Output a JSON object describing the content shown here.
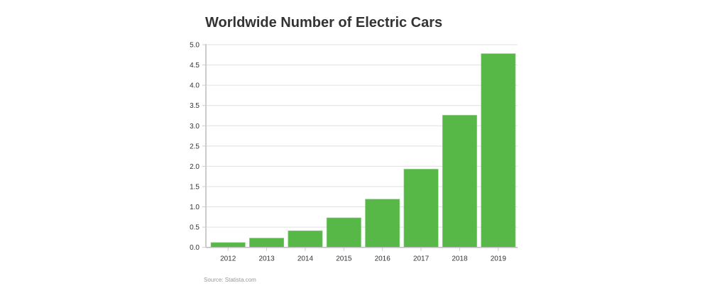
{
  "chart_data": {
    "type": "bar",
    "title": "Worldwide Number of Electric Cars",
    "xlabel": "",
    "ylabel": "",
    "categories": [
      "2012",
      "2013",
      "2014",
      "2015",
      "2016",
      "2017",
      "2018",
      "2019"
    ],
    "values": [
      0.12,
      0.23,
      0.41,
      0.73,
      1.19,
      1.93,
      3.26,
      4.78
    ],
    "ylim": [
      0,
      5.0
    ],
    "yticks": [
      "0.0",
      "0.5",
      "1.0",
      "1.5",
      "2.0",
      "2.5",
      "3.0",
      "3.5",
      "4.0",
      "4.5",
      "5.0"
    ],
    "grid": true,
    "bar_color": "#57b847",
    "source": "Source: Statista.com"
  }
}
